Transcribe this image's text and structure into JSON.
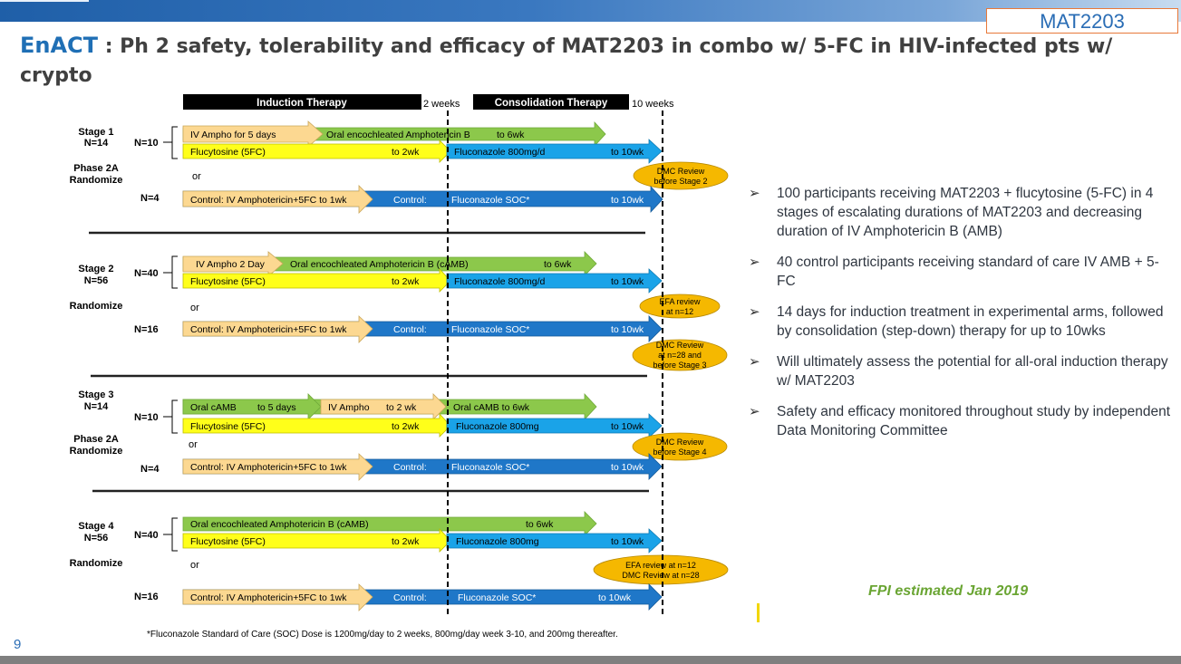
{
  "header": {
    "badge": "MAT2203"
  },
  "title": {
    "accent": "EnACT",
    "rest": " : Ph 2 safety, tolerability and efficacy of MAT2203 in combo w/ 5-FC in HIV-infected pts w/ crypto"
  },
  "timeline": {
    "induction": "Induction Therapy",
    "t1": "2 weeks",
    "consolidation": "Consolidation Therapy",
    "t2": "10 weeks"
  },
  "stages": [
    {
      "stage": "Stage 1",
      "n": "N=14",
      "phase": "Phase 2A",
      "randomize": "Randomize",
      "exp_n": "N=10",
      "ctrl_n": "N=4",
      "or": "or",
      "green": [
        "IV Ampho for 5 days",
        "Oral encochleated Amphotericin B",
        "to 6wk"
      ],
      "yellow": [
        "Flucytosine (5FC)",
        "to 2wk"
      ],
      "blue": [
        "Fluconazole 800mg/d",
        "to 10wk"
      ],
      "ctrl": [
        "Control: IV Amphotericin+5FC to 1wk",
        "Control:",
        "Fluconazole SOC*",
        "to 10wk"
      ],
      "review": [
        "DMC Review",
        "before Stage 2"
      ]
    },
    {
      "stage": "Stage 2",
      "n": "N=56",
      "randomize": "Randomize",
      "exp_n": "N=40",
      "ctrl_n": "N=16",
      "or": "or",
      "green": [
        "IV Ampho 2 Day",
        "Oral encochleated Amphotericin B (cAMB)",
        "to 6wk"
      ],
      "yellow": [
        "Flucytosine (5FC)",
        "to 2wk"
      ],
      "blue": [
        "Fluconazole 800mg/d",
        "to 10wk"
      ],
      "ctrl": [
        "Control: IV Amphotericin+5FC to 1wk",
        "Control:",
        "Fluconazole SOC*",
        "to 10wk"
      ],
      "review_a": [
        "EFA review",
        "at n=12"
      ],
      "review_b": [
        "DMC Review",
        "at n=28 and",
        "before Stage 3"
      ]
    },
    {
      "stage": "Stage 3",
      "n": "N=14",
      "phase": "Phase 2A",
      "randomize": "Randomize",
      "exp_n": "N=10",
      "ctrl_n": "N=4",
      "or": "or",
      "green": [
        "Oral cAMB",
        "to 5 days",
        "IV Ampho",
        "to 2 wk",
        "Oral cAMB to 6wk"
      ],
      "yellow": [
        "Flucytosine (5FC)",
        "to 2wk"
      ],
      "blue": [
        "Fluconazole 800mg",
        "to 10wk"
      ],
      "ctrl": [
        "Control: IV Amphotericin+5FC to 1wk",
        "Control:",
        "Fluconazole SOC*",
        "to 10wk"
      ],
      "review": [
        "DMC Review",
        "before Stage 4"
      ]
    },
    {
      "stage": "Stage 4",
      "n": "N=56",
      "randomize": "Randomize",
      "exp_n": "N=40",
      "ctrl_n": "N=16",
      "or": "or",
      "green": [
        "Oral encochleated Amphotericin B (cAMB)",
        "to 6wk"
      ],
      "yellow": [
        "Flucytosine (5FC)",
        "to 2wk"
      ],
      "blue": [
        "Fluconazole 800mg",
        "to 10wk"
      ],
      "ctrl": [
        "Control: IV Amphotericin+5FC to 1wk",
        "Control:",
        "Fluconazole SOC*",
        "to 10wk"
      ],
      "review": [
        "EFA review at n=12",
        "DMC Review at n=28"
      ]
    }
  ],
  "footnote": "*Fluconazole Standard of Care (SOC) Dose is 1200mg/day to 2 weeks, 800mg/day week 3-10, and 200mg thereafter.",
  "bullets": [
    "100 participants receiving MAT2203 + flucytosine (5-FC) in 4 stages of escalating durations of MAT2203 and decreasing duration of IV Amphotericin B (AMB)",
    "40 control participants receiving standard of care IV AMB + 5-FC",
    "14 days for induction treatment in experimental arms, followed by consolidation (step-down) therapy for up to 10wks",
    "Will ultimately assess the potential for all-oral induction therapy w/ MAT2203",
    "Safety and efficacy monitored throughout study by independent Data Monitoring Committee"
  ],
  "bullet_marker": "➢",
  "fpi": "FPI estimated Jan 2019",
  "page_number": "9",
  "colors": {
    "green": "#8cc84b",
    "yellow": "#ffff1a",
    "blue": "#1aa3e8",
    "control": "#fcd891",
    "ctrlblue": "#1f77c8",
    "review": "#f5b800",
    "accent": "#1f6fb5"
  }
}
